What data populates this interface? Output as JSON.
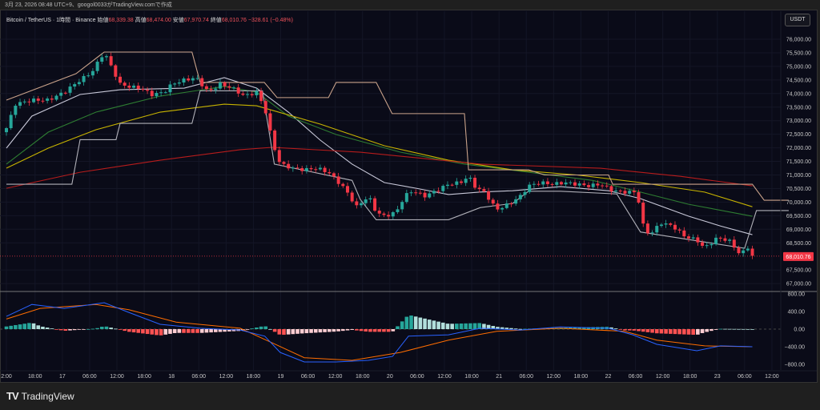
{
  "caption": "3月 23, 2026 08:48 UTC+9、googol0033がTradingView.comで作成",
  "legend": {
    "symbol": "Bitcoin / TetherUS · 1時間 · Binance",
    "open_label": "始値",
    "open": "68,339.38",
    "high_label": "高値",
    "high": "68,474.00",
    "low_label": "安値",
    "low": "67,970.74",
    "close_label": "終値",
    "close": "68,010.76",
    "change": "−328.61 (−0.48%)"
  },
  "currency": "USDT",
  "last_price_label": "68,010.76",
  "footer": {
    "brand": "TradingView",
    "logo_icon": "tradingview-logo-icon"
  },
  "colors": {
    "up": "#26a69a",
    "down": "#f23645",
    "ma_fast": "#c8c8d8",
    "ma_green": "#2e7d32",
    "ma_yellow": "#c8b400",
    "ma_red": "#b71c1c",
    "band_upper": "#c9a28a",
    "band_lower": "#b0b0b8",
    "macd": "#2962ff",
    "signal": "#ff6d00"
  },
  "chart_data": {
    "type": "candlestick",
    "interval": "1h",
    "price_ticks": [
      "76,000.00",
      "75,500.00",
      "75,000.00",
      "74,500.00",
      "74,000.00",
      "73,500.00",
      "73,000.00",
      "72,500.00",
      "72,000.00",
      "71,500.00",
      "71,000.00",
      "70,500.00",
      "70,000.00",
      "69,500.00",
      "69,000.00",
      "68,500.00",
      "67,500.00",
      "67,000.00"
    ],
    "price_tick_values": [
      76000,
      75500,
      75000,
      74500,
      74000,
      73500,
      73000,
      72500,
      72000,
      71500,
      71000,
      70500,
      70000,
      69500,
      69000,
      68500,
      67500,
      67000
    ],
    "ylim": [
      66800,
      76400
    ],
    "macd_ticks": [
      "800.00",
      "400.00",
      "0.00",
      "−400.00",
      "−800.00"
    ],
    "macd_tick_values": [
      800,
      400,
      0,
      -400,
      -800
    ],
    "macd_ylim": [
      -900,
      900
    ],
    "time_ticks": [
      "2:00",
      "18:00",
      "17",
      "06:00",
      "12:00",
      "18:00",
      "18",
      "06:00",
      "12:00",
      "18:00",
      "19",
      "06:00",
      "12:00",
      "18:00",
      "20",
      "06:00",
      "12:00",
      "18:00",
      "21",
      "06:00",
      "12:00",
      "18:00",
      "22",
      "06:00",
      "12:00",
      "18:00",
      "23",
      "06:00",
      "12:00"
    ],
    "time_tick_hours": [
      0,
      6.3,
      12.3,
      18.3,
      24.3,
      30.3,
      36.3,
      42.3,
      48.3,
      54.3,
      60.3,
      66.3,
      72.3,
      78.3,
      84.3,
      90.3,
      96.3,
      102.3,
      108.3,
      114.3,
      120.3,
      126.3,
      132.3,
      138.3,
      144.3,
      150.3,
      156.3,
      162.3,
      168.3
    ],
    "close_anchors": [
      [
        0,
        72725
      ],
      [
        2,
        73610
      ],
      [
        5.6,
        73758
      ],
      [
        9.2,
        73758
      ],
      [
        12.7,
        74050
      ],
      [
        16.2,
        74495
      ],
      [
        18.8,
        74790
      ],
      [
        21.5,
        75530
      ],
      [
        23.2,
        74940
      ],
      [
        25,
        74350
      ],
      [
        26.7,
        74260
      ],
      [
        29.4,
        74200
      ],
      [
        32,
        73960
      ],
      [
        34.7,
        74050
      ],
      [
        36.4,
        74350
      ],
      [
        39.1,
        74500
      ],
      [
        41.7,
        74584
      ],
      [
        44.4,
        74050
      ],
      [
        47,
        74350
      ],
      [
        49.7,
        74200
      ],
      [
        52.3,
        73905
      ],
      [
        55,
        74050
      ],
      [
        56.8,
        73463
      ],
      [
        58.6,
        72136
      ],
      [
        60.2,
        71400
      ],
      [
        62.9,
        71250
      ],
      [
        65.5,
        71190
      ],
      [
        68.2,
        71250
      ],
      [
        70.8,
        71100
      ],
      [
        74.3,
        70510
      ],
      [
        77,
        69830
      ],
      [
        79.6,
        70220
      ],
      [
        81.3,
        69630
      ],
      [
        83.1,
        69480
      ],
      [
        85.7,
        69630
      ],
      [
        87.5,
        70220
      ],
      [
        89.3,
        70420
      ],
      [
        91.9,
        70220
      ],
      [
        94.5,
        70420
      ],
      [
        97.2,
        70660
      ],
      [
        99.8,
        70720
      ],
      [
        101.6,
        70950
      ],
      [
        103.3,
        70510
      ],
      [
        105.1,
        70370
      ],
      [
        107.7,
        69720
      ],
      [
        110.4,
        69920
      ],
      [
        113,
        70220
      ],
      [
        114.8,
        70600
      ],
      [
        117.4,
        70720
      ],
      [
        120.1,
        70660
      ],
      [
        122.7,
        70720
      ],
      [
        125.4,
        70660
      ],
      [
        128,
        70600
      ],
      [
        130.6,
        70660
      ],
      [
        133.3,
        70420
      ],
      [
        135.9,
        70370
      ],
      [
        138.6,
        70370
      ],
      [
        140.3,
        68890
      ],
      [
        142.1,
        68890
      ],
      [
        143.8,
        69240
      ],
      [
        146.5,
        69120
      ],
      [
        149.1,
        68740
      ],
      [
        151.8,
        68600
      ],
      [
        153.5,
        68300
      ],
      [
        156.2,
        68680
      ],
      [
        158.8,
        68600
      ],
      [
        161.4,
        68060
      ],
      [
        163,
        68339
      ],
      [
        164,
        68010
      ]
    ],
    "overlays": [
      {
        "name": "ma_fast",
        "color": "#c8c8d8",
        "points": [
          [
            0,
            71988
          ],
          [
            5.6,
            73168
          ],
          [
            16.2,
            73965
          ],
          [
            25,
            74140
          ],
          [
            39.1,
            74200
          ],
          [
            47.9,
            74584
          ],
          [
            55,
            74200
          ],
          [
            62,
            73315
          ],
          [
            69,
            72283
          ],
          [
            76,
            71400
          ],
          [
            83.1,
            70720
          ],
          [
            90.1,
            70510
          ],
          [
            97.2,
            70280
          ],
          [
            104.2,
            70370
          ],
          [
            111.3,
            70420
          ],
          [
            121.8,
            70570
          ],
          [
            132.4,
            70420
          ],
          [
            139.4,
            70130
          ],
          [
            150,
            69480
          ],
          [
            157,
            69120
          ],
          [
            164,
            68800
          ]
        ]
      },
      {
        "name": "ma_green",
        "color": "#2e7d32",
        "points": [
          [
            0,
            71400
          ],
          [
            9.2,
            72578
          ],
          [
            19.7,
            73315
          ],
          [
            33.8,
            73905
          ],
          [
            47.9,
            74260
          ],
          [
            55,
            74053
          ],
          [
            62,
            73168
          ],
          [
            72.5,
            72490
          ],
          [
            86.6,
            71840
          ],
          [
            100.7,
            71400
          ],
          [
            114.8,
            71100
          ],
          [
            128.9,
            70800
          ],
          [
            139.4,
            70370
          ],
          [
            150,
            69920
          ],
          [
            164,
            69480
          ]
        ]
      },
      {
        "name": "ma_yellow",
        "color": "#c8b400",
        "points": [
          [
            0,
            71250
          ],
          [
            9.2,
            71988
          ],
          [
            19.7,
            72666
          ],
          [
            33.8,
            73315
          ],
          [
            47.9,
            73610
          ],
          [
            55,
            73550
          ],
          [
            69,
            72873
          ],
          [
            83.1,
            72077
          ],
          [
            97.2,
            71545
          ],
          [
            111.3,
            71190
          ],
          [
            125.4,
            71000
          ],
          [
            139.4,
            70720
          ],
          [
            153.5,
            70370
          ],
          [
            164,
            69830
          ]
        ]
      },
      {
        "name": "ma_red",
        "color": "#b71c1c",
        "points": [
          [
            0,
            70510
          ],
          [
            16.2,
            71100
          ],
          [
            33.8,
            71545
          ],
          [
            51.4,
            71930
          ],
          [
            58.4,
            72018
          ],
          [
            77.8,
            71840
          ],
          [
            104.2,
            71400
          ],
          [
            130.6,
            71250
          ],
          [
            148.2,
            70950
          ],
          [
            164,
            70600
          ]
        ]
      },
      {
        "name": "band_upper",
        "color": "#c9a28a",
        "points": [
          [
            0,
            73758
          ],
          [
            15.3,
            74730
          ],
          [
            21.5,
            75528
          ],
          [
            40.8,
            75528
          ],
          [
            42.6,
            74410
          ],
          [
            56.7,
            74410
          ],
          [
            59.5,
            73850
          ],
          [
            70.8,
            73850
          ],
          [
            72.5,
            74410
          ],
          [
            81.3,
            74410
          ],
          [
            84.8,
            73260
          ],
          [
            100.7,
            73260
          ],
          [
            101.6,
            71190
          ],
          [
            114.8,
            71190
          ],
          [
            118.3,
            71000
          ],
          [
            132.4,
            71000
          ],
          [
            133.3,
            70660
          ],
          [
            164,
            70660
          ],
          [
            166.6,
            70070
          ],
          [
            172,
            70070
          ]
        ]
      },
      {
        "name": "band_lower",
        "color": "#b0b0b8",
        "points": [
          [
            0,
            70660
          ],
          [
            14.4,
            70660
          ],
          [
            16.2,
            72300
          ],
          [
            24.1,
            72300
          ],
          [
            25,
            72900
          ],
          [
            40.8,
            72900
          ],
          [
            42.6,
            74100
          ],
          [
            56.3,
            74100
          ],
          [
            58.9,
            71400
          ],
          [
            76,
            70800
          ],
          [
            77.8,
            70100
          ],
          [
            81.3,
            69350
          ],
          [
            97.2,
            69350
          ],
          [
            104.2,
            69800
          ],
          [
            111.3,
            69950
          ],
          [
            114.8,
            70400
          ],
          [
            121.8,
            70400
          ],
          [
            134.2,
            70300
          ],
          [
            139.4,
            68900
          ],
          [
            162.3,
            68300
          ],
          [
            164.9,
            69690
          ],
          [
            172,
            69690
          ]
        ]
      }
    ],
    "macd": {
      "macd_line": [
        [
          0,
          290
        ],
        [
          5.6,
          560
        ],
        [
          12.7,
          470
        ],
        [
          21.5,
          600
        ],
        [
          26.9,
          380
        ],
        [
          33.8,
          110
        ],
        [
          42.6,
          20
        ],
        [
          51.4,
          -20
        ],
        [
          56.8,
          -160
        ],
        [
          60.2,
          -530
        ],
        [
          65.5,
          -745
        ],
        [
          72.5,
          -745
        ],
        [
          79.6,
          -710
        ],
        [
          84.9,
          -620
        ],
        [
          88.4,
          -160
        ],
        [
          97.2,
          -130
        ],
        [
          104.2,
          20
        ],
        [
          113,
          -20
        ],
        [
          121.8,
          50
        ],
        [
          132.4,
          20
        ],
        [
          137.7,
          -130
        ],
        [
          143,
          -345
        ],
        [
          151.8,
          -490
        ],
        [
          157,
          -380
        ],
        [
          164,
          -400
        ]
      ],
      "signal_line": [
        [
          0,
          230
        ],
        [
          7.4,
          470
        ],
        [
          19.7,
          560
        ],
        [
          26.9,
          440
        ],
        [
          37.3,
          160
        ],
        [
          51.4,
          20
        ],
        [
          58.4,
          -310
        ],
        [
          65.5,
          -650
        ],
        [
          76,
          -710
        ],
        [
          86.6,
          -530
        ],
        [
          97.2,
          -250
        ],
        [
          107.8,
          -50
        ],
        [
          121.8,
          20
        ],
        [
          135.9,
          -50
        ],
        [
          143,
          -250
        ],
        [
          153.5,
          -380
        ],
        [
          164,
          -400
        ]
      ]
    }
  }
}
